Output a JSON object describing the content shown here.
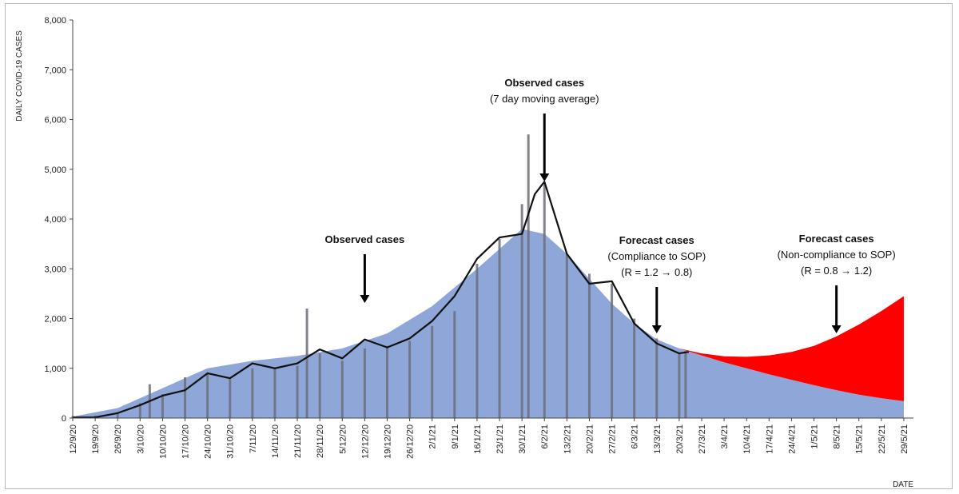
{
  "chart_data": {
    "type": "bar",
    "ylabel": "DAILY COVID-19 CASES",
    "xlabel": "DATE",
    "ylim": [
      0,
      8000
    ],
    "yticks": [
      0,
      1000,
      2000,
      3000,
      4000,
      5000,
      6000,
      7000,
      8000
    ],
    "ytick_labels": [
      "0",
      "1,000",
      "2,000",
      "3,000",
      "4,000",
      "5,000",
      "6,000",
      "7,000",
      "8,000"
    ],
    "xlim": [
      "2020-09-12",
      "2021-06-01"
    ],
    "xticks": [
      "2020-09-12",
      "2020-09-19",
      "2020-09-26",
      "2020-10-03",
      "2020-10-10",
      "2020-10-17",
      "2020-10-24",
      "2020-10-31",
      "2020-11-07",
      "2020-11-14",
      "2020-11-21",
      "2020-11-28",
      "2020-12-05",
      "2020-12-12",
      "2020-12-19",
      "2020-12-26",
      "2021-01-02",
      "2021-01-09",
      "2021-01-16",
      "2021-01-23",
      "2021-01-30",
      "2021-02-06",
      "2021-02-13",
      "2021-02-20",
      "2021-02-27",
      "2021-03-06",
      "2021-03-13",
      "2021-03-20",
      "2021-03-27",
      "2021-04-03",
      "2021-04-10",
      "2021-04-17",
      "2021-04-24",
      "2021-05-01",
      "2021-05-08",
      "2021-05-15",
      "2021-05-22",
      "2021-05-29"
    ],
    "xtick_labels": [
      "12/9/20",
      "19/9/20",
      "26/9/20",
      "3/10/20",
      "10/10/20",
      "17/10/20",
      "24/10/20",
      "31/10/20",
      "7/11/20",
      "14/11/20",
      "21/11/20",
      "28/11/20",
      "5/12/20",
      "12/12/20",
      "19/12/20",
      "26/12/20",
      "2/1/21",
      "9/1/21",
      "16/1/21",
      "23/1/21",
      "30/1/21",
      "6/2/21",
      "13/2/21",
      "20/2/21",
      "27/2/21",
      "6/3/21",
      "13/3/21",
      "20/3/21",
      "27/3/21",
      "3/4/21",
      "10/4/21",
      "17/4/21",
      "24/4/21",
      "1/5/21",
      "8/5/21",
      "15/5/21",
      "22/5/21",
      "29/5/21"
    ],
    "series": [
      {
        "kind": "observed_bars",
        "color": "#6b6f7a",
        "points": [
          [
            "2020-09-12",
            40
          ],
          [
            "2020-09-19",
            50
          ],
          [
            "2020-09-26",
            120
          ],
          [
            "2020-10-03",
            300
          ],
          [
            "2020-10-06",
            680
          ],
          [
            "2020-10-10",
            480
          ],
          [
            "2020-10-17",
            820
          ],
          [
            "2020-10-24",
            900
          ],
          [
            "2020-10-31",
            780
          ],
          [
            "2020-11-07",
            1000
          ],
          [
            "2020-11-14",
            1000
          ],
          [
            "2020-11-21",
            1050
          ],
          [
            "2020-11-24",
            2200
          ],
          [
            "2020-11-28",
            1300
          ],
          [
            "2020-12-05",
            1150
          ],
          [
            "2020-12-12",
            1400
          ],
          [
            "2020-12-19",
            1450
          ],
          [
            "2020-12-26",
            1550
          ],
          [
            "2021-01-02",
            1850
          ],
          [
            "2021-01-09",
            2150
          ],
          [
            "2021-01-16",
            3100
          ],
          [
            "2021-01-23",
            3600
          ],
          [
            "2021-01-30",
            4300
          ],
          [
            "2021-02-01",
            5700
          ],
          [
            "2021-02-06",
            4700
          ],
          [
            "2021-02-13",
            3300
          ],
          [
            "2021-02-20",
            2900
          ],
          [
            "2021-02-27",
            2700
          ],
          [
            "2021-03-06",
            2000
          ],
          [
            "2021-03-13",
            1600
          ],
          [
            "2021-03-20",
            1300
          ],
          [
            "2021-03-22",
            1350
          ]
        ]
      },
      {
        "kind": "moving_average_line",
        "color": "#111111",
        "points": [
          [
            "2020-09-12",
            10
          ],
          [
            "2020-09-19",
            15
          ],
          [
            "2020-09-26",
            100
          ],
          [
            "2020-10-03",
            260
          ],
          [
            "2020-10-10",
            450
          ],
          [
            "2020-10-17",
            560
          ],
          [
            "2020-10-24",
            900
          ],
          [
            "2020-10-31",
            800
          ],
          [
            "2020-11-07",
            1100
          ],
          [
            "2020-11-14",
            1000
          ],
          [
            "2020-11-21",
            1100
          ],
          [
            "2020-11-28",
            1380
          ],
          [
            "2020-12-05",
            1200
          ],
          [
            "2020-12-12",
            1580
          ],
          [
            "2020-12-19",
            1420
          ],
          [
            "2020-12-26",
            1600
          ],
          [
            "2021-01-02",
            1950
          ],
          [
            "2021-01-09",
            2450
          ],
          [
            "2021-01-16",
            3200
          ],
          [
            "2021-01-23",
            3630
          ],
          [
            "2021-01-30",
            3700
          ],
          [
            "2021-02-03",
            4500
          ],
          [
            "2021-02-06",
            4750
          ],
          [
            "2021-02-13",
            3300
          ],
          [
            "2021-02-20",
            2700
          ],
          [
            "2021-02-27",
            2750
          ],
          [
            "2021-03-06",
            1900
          ],
          [
            "2021-03-13",
            1500
          ],
          [
            "2021-03-20",
            1300
          ],
          [
            "2021-03-23",
            1330
          ]
        ]
      },
      {
        "kind": "forecast_compliance_area",
        "color": "#8fa7d8",
        "points": [
          [
            "2020-09-12",
            30
          ],
          [
            "2020-09-26",
            200
          ],
          [
            "2020-10-10",
            600
          ],
          [
            "2020-10-24",
            1000
          ],
          [
            "2020-11-07",
            1150
          ],
          [
            "2020-11-21",
            1250
          ],
          [
            "2020-12-05",
            1400
          ],
          [
            "2020-12-19",
            1700
          ],
          [
            "2021-01-02",
            2250
          ],
          [
            "2021-01-16",
            3000
          ],
          [
            "2021-01-30",
            3800
          ],
          [
            "2021-02-06",
            3700
          ],
          [
            "2021-02-13",
            3300
          ],
          [
            "2021-02-20",
            2800
          ],
          [
            "2021-02-27",
            2300
          ],
          [
            "2021-03-06",
            1900
          ],
          [
            "2021-03-13",
            1580
          ],
          [
            "2021-03-20",
            1400
          ],
          [
            "2021-03-27",
            1260
          ],
          [
            "2021-04-03",
            1120
          ],
          [
            "2021-04-10",
            1000
          ],
          [
            "2021-04-17",
            880
          ],
          [
            "2021-04-24",
            770
          ],
          [
            "2021-05-01",
            660
          ],
          [
            "2021-05-08",
            560
          ],
          [
            "2021-05-15",
            470
          ],
          [
            "2021-05-22",
            400
          ],
          [
            "2021-05-29",
            340
          ]
        ]
      },
      {
        "kind": "forecast_noncompliance_upper",
        "color": "#ff0000",
        "points": [
          [
            "2021-03-20",
            1400
          ],
          [
            "2021-03-27",
            1300
          ],
          [
            "2021-04-03",
            1240
          ],
          [
            "2021-04-10",
            1230
          ],
          [
            "2021-04-17",
            1260
          ],
          [
            "2021-04-24",
            1330
          ],
          [
            "2021-05-01",
            1450
          ],
          [
            "2021-05-08",
            1640
          ],
          [
            "2021-05-15",
            1880
          ],
          [
            "2021-05-22",
            2150
          ],
          [
            "2021-05-29",
            2450
          ]
        ]
      }
    ],
    "annotations": [
      {
        "title": "Observed cases",
        "subtitle": "(7 day moving average)",
        "subtitle2": "",
        "date": "2021-02-06"
      },
      {
        "title": "Observed cases",
        "subtitle": "",
        "subtitle2": "",
        "date": "2020-12-12"
      },
      {
        "title": "Forecast cases",
        "subtitle": "(Compliance to SOP)",
        "subtitle2": "(R = 1.2 → 0.8)",
        "date": "2021-03-13"
      },
      {
        "title": "Forecast cases",
        "subtitle": "(Non-compliance to SOP)",
        "subtitle2": "(R = 0.8 → 1.2)",
        "date": "2021-05-08"
      }
    ]
  }
}
